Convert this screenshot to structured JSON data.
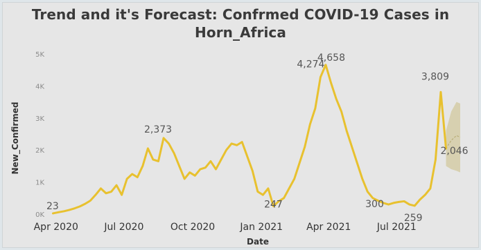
{
  "chart_data": {
    "type": "line",
    "title": "Trend and it's Forecast: Confrmed COVID-19 Cases in Horn_Africa",
    "title_lines": [
      "Trend and it's Forecast: Confrmed COVID-19 Cases in",
      "Horn_Africa"
    ],
    "xlabel": "Date",
    "ylabel": "New_Confirmed",
    "ylim": [
      0,
      5000
    ],
    "xlim": [
      "2020-03-22",
      "2021-09-24"
    ],
    "y_ticks": [
      {
        "value": 0,
        "label": "0K"
      },
      {
        "value": 1000,
        "label": "1K"
      },
      {
        "value": 2000,
        "label": "2K"
      },
      {
        "value": 3000,
        "label": "3K"
      },
      {
        "value": 4000,
        "label": "4K"
      },
      {
        "value": 5000,
        "label": "5K"
      }
    ],
    "x_ticks": [
      {
        "date": "2020-04-01",
        "label": "Apr 2020"
      },
      {
        "date": "2020-07-01",
        "label": "Jul 2020"
      },
      {
        "date": "2020-10-01",
        "label": "Oct 2020"
      },
      {
        "date": "2021-01-01",
        "label": "Jan 2021"
      },
      {
        "date": "2021-04-01",
        "label": "Apr 2021"
      },
      {
        "date": "2021-07-01",
        "label": "Jul 2021"
      }
    ],
    "grid": false,
    "line_color": "#e8c12f",
    "forecast_color": "#cfc493",
    "series": [
      {
        "x": [
          "2020-03-28",
          "2020-04-05",
          "2020-04-12",
          "2020-04-19",
          "2020-04-26",
          "2020-05-03",
          "2020-05-10",
          "2020-05-17",
          "2020-05-24",
          "2020-05-31",
          "2020-06-07",
          "2020-06-14",
          "2020-06-21",
          "2020-06-28",
          "2020-07-05",
          "2020-07-12",
          "2020-07-19",
          "2020-07-26",
          "2020-08-02",
          "2020-08-09",
          "2020-08-16",
          "2020-08-23",
          "2020-08-30",
          "2020-09-06",
          "2020-09-13",
          "2020-09-20",
          "2020-09-27",
          "2020-10-04",
          "2020-10-11",
          "2020-10-18",
          "2020-10-25",
          "2020-11-01",
          "2020-11-08",
          "2020-11-15",
          "2020-11-22",
          "2020-11-29",
          "2020-12-06",
          "2020-12-13",
          "2020-12-20",
          "2020-12-27",
          "2021-01-03",
          "2021-01-10",
          "2021-01-17",
          "2021-01-24",
          "2021-01-31",
          "2021-02-07",
          "2021-02-14",
          "2021-02-21",
          "2021-02-28",
          "2021-03-07",
          "2021-03-14",
          "2021-03-21",
          "2021-03-28",
          "2021-04-04",
          "2021-04-11",
          "2021-04-18",
          "2021-04-25",
          "2021-05-02",
          "2021-05-09",
          "2021-05-16",
          "2021-05-23",
          "2021-05-30",
          "2021-06-06",
          "2021-06-13",
          "2021-06-20",
          "2021-06-27",
          "2021-07-04",
          "2021-07-11",
          "2021-07-18",
          "2021-07-25",
          "2021-08-01",
          "2021-08-08",
          "2021-08-15",
          "2021-08-22",
          "2021-08-29",
          "2021-09-05"
        ],
        "values": [
          23,
          60,
          90,
          130,
          180,
          240,
          320,
          420,
          600,
          800,
          650,
          700,
          900,
          600,
          1100,
          1250,
          1150,
          1500,
          2050,
          1700,
          1650,
          2373,
          2200,
          1900,
          1500,
          1100,
          1300,
          1200,
          1400,
          1450,
          1650,
          1400,
          1700,
          2000,
          2200,
          2150,
          2250,
          1800,
          1350,
          700,
          600,
          800,
          247,
          400,
          500,
          800,
          1100,
          1600,
          2100,
          2800,
          3300,
          4274,
          4658,
          4100,
          3600,
          3200,
          2600,
          2100,
          1600,
          1100,
          700,
          500,
          420,
          350,
          300,
          350,
          380,
          400,
          300,
          259,
          450,
          600,
          800,
          1700,
          3809,
          2046
        ]
      }
    ],
    "forecast": {
      "x": [
        "2021-09-05",
        "2021-09-12",
        "2021-09-19",
        "2021-09-24"
      ],
      "upper": [
        2600,
        3200,
        3500,
        3450
      ],
      "lower": [
        1500,
        1400,
        1350,
        1300
      ],
      "mid": [
        2046,
        2300,
        2450,
        2400
      ]
    },
    "data_labels": [
      {
        "date": "2020-04-02",
        "value": 23,
        "text": "23"
      },
      {
        "date": "2020-08-23",
        "value": 2373,
        "text": "2,373"
      },
      {
        "date": "2021-01-17",
        "value": 247,
        "text": "247"
      },
      {
        "date": "2021-03-21",
        "value": 4274,
        "text": "4,274"
      },
      {
        "date": "2021-03-28",
        "value": 4658,
        "text": "4,658"
      },
      {
        "date": "2021-06-20",
        "value": 300,
        "text": "300"
      },
      {
        "date": "2021-07-25",
        "value": 259,
        "text": "259"
      },
      {
        "date": "2021-08-29",
        "value": 3809,
        "text": "3,809"
      },
      {
        "date": "2021-09-05",
        "value": 2046,
        "text": "2,046"
      }
    ]
  }
}
